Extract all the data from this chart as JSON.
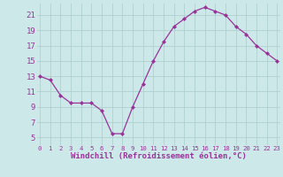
{
  "x": [
    0,
    1,
    2,
    3,
    4,
    5,
    6,
    7,
    8,
    9,
    10,
    11,
    12,
    13,
    14,
    15,
    16,
    17,
    18,
    19,
    20,
    21,
    22,
    23
  ],
  "y": [
    13,
    12.5,
    10.5,
    9.5,
    9.5,
    9.5,
    8.5,
    5.5,
    5.5,
    9,
    12,
    15,
    17.5,
    19.5,
    20.5,
    21.5,
    22,
    21.5,
    21,
    19.5,
    18.5,
    17,
    16,
    15
  ],
  "line_color": "#993399",
  "marker": "D",
  "marker_size": 2,
  "bg_color": "#cce8e8",
  "grid_color": "#b0d0d0",
  "xlabel": "Windchill (Refroidissement éolien,°C)",
  "xlabel_color": "#993399",
  "yticks": [
    5,
    7,
    9,
    11,
    13,
    15,
    17,
    19,
    21
  ],
  "xticks": [
    0,
    1,
    2,
    3,
    4,
    5,
    6,
    7,
    8,
    9,
    10,
    11,
    12,
    13,
    14,
    15,
    16,
    17,
    18,
    19,
    20,
    21,
    22,
    23
  ],
  "xlim": [
    -0.3,
    23.3
  ],
  "ylim": [
    4,
    22.5
  ],
  "tick_color": "#993399",
  "ytick_fontsize": 6.5,
  "xtick_fontsize": 5.2,
  "xlabel_fontsize": 6.5
}
